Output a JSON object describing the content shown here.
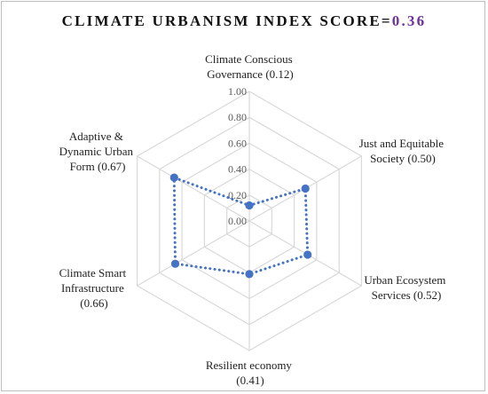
{
  "title": {
    "text": "CLIMATE URBANISM INDEX SCORE=",
    "score": "0.36"
  },
  "colors": {
    "series": "#4472c4",
    "grid": "#d9d9d9",
    "score_accent": "#7030a0"
  },
  "chart_data": {
    "type": "radar",
    "title": "CLIMATE URBANISM INDEX SCORE=0.36",
    "categories": [
      "Climate Conscious Governance (0.12)",
      "Just and Equitable Society (0.50)",
      "Urban Ecosystem Services (0.52)",
      "Resilient economy (0.41)",
      "Climate Smart Infrastructure (0.66)",
      "Adaptive & Dynamic Urban Form (0.67)"
    ],
    "values": [
      0.12,
      0.5,
      0.52,
      0.41,
      0.66,
      0.67
    ],
    "rlim": [
      0,
      1
    ],
    "ticks": [
      "0.00",
      "0.20",
      "0.40",
      "0.60",
      "0.80",
      "1.00"
    ],
    "grid": true,
    "legend": "none",
    "line_style": "dotted",
    "markers": "circle"
  }
}
